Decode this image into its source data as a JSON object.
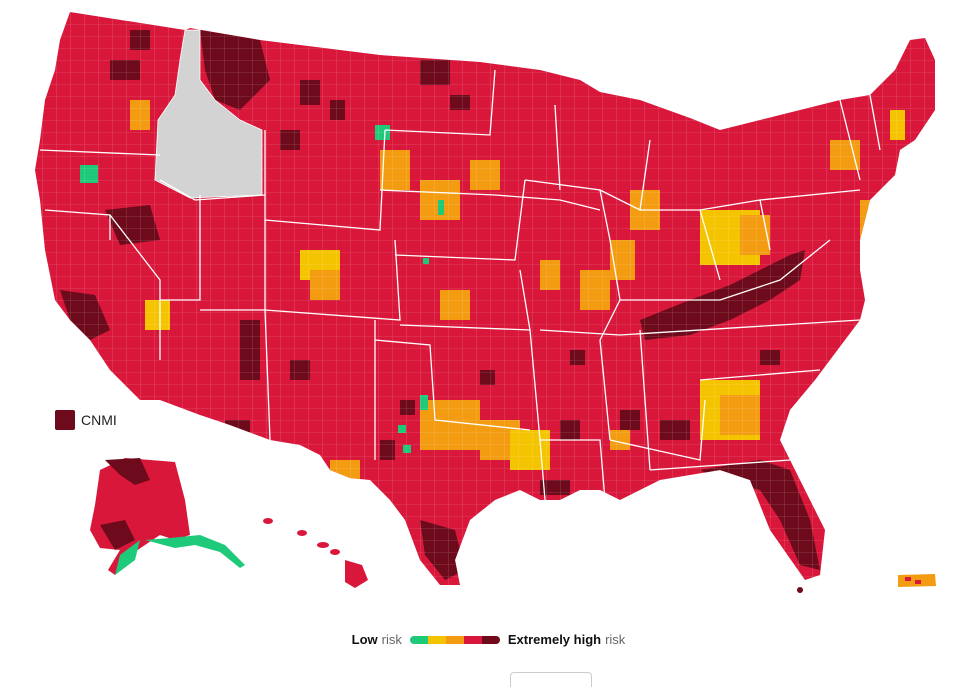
{
  "colors": {
    "low": "#1ec97a",
    "moderate": "#f5c400",
    "substantial": "#f39c12",
    "high": "#d8173b",
    "very_high": "#b30f2a",
    "extremely_high": "#6d0a1b",
    "no_data": "#d3d3d3",
    "border": "#ffffff"
  },
  "legend": {
    "low_label": "Low",
    "low_suffix": "risk",
    "high_label": "Extremely high",
    "high_suffix": "risk",
    "levels": [
      "low",
      "moderate",
      "substantial",
      "high",
      "extremely_high"
    ]
  },
  "territories": {
    "cnmi_label": "CNMI"
  }
}
